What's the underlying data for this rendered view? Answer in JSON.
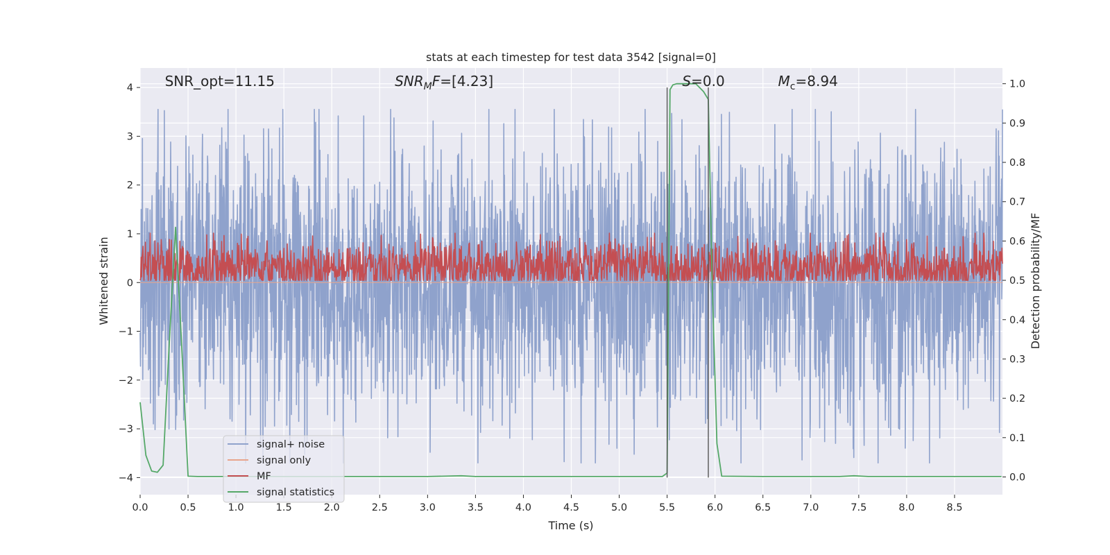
{
  "chart_data": {
    "type": "line",
    "title": "stats at each timestep for test data 3542 [signal=0]",
    "xlabel": "Time (s)",
    "ylabel": "Whitened strain",
    "ylabel_right": "Detection probability/MF",
    "xlim": [
      0.0,
      9.0
    ],
    "ylim": [
      -4.35,
      4.4
    ],
    "ylim_right": [
      -0.045,
      1.04
    ],
    "x_ticks": [
      "0.0",
      "0.5",
      "1.0",
      "1.5",
      "2.0",
      "2.5",
      "3.0",
      "3.5",
      "4.0",
      "4.5",
      "5.0",
      "5.5",
      "6.0",
      "6.5",
      "7.0",
      "7.5",
      "8.0",
      "8.5"
    ],
    "y_ticks": [
      "−4",
      "−3",
      "−2",
      "−1",
      "0",
      "1",
      "2",
      "3",
      "4"
    ],
    "y_ticks_right": [
      "0.0",
      "0.1",
      "0.2",
      "0.3",
      "0.4",
      "0.5",
      "0.6",
      "0.7",
      "0.8",
      "0.9",
      "1.0"
    ],
    "grid": true,
    "legend_position": "lower-left",
    "annotations": [
      {
        "name": "snr-opt",
        "parts": [
          {
            "t": "SNR_opt=11.15",
            "italic": false
          }
        ],
        "x": 0.2
      },
      {
        "name": "snr-mf",
        "parts": [
          {
            "t": "SNR",
            "italic": true
          },
          {
            "t": "M",
            "italic": true,
            "sub": true
          },
          {
            "t": "F",
            "italic": true
          },
          {
            "t": "=[4.23]",
            "italic": false
          }
        ],
        "x": 2.6
      },
      {
        "name": "s-value",
        "parts": [
          {
            "t": "S",
            "italic": true
          },
          {
            "t": "=0.0",
            "italic": false
          }
        ],
        "x": 5.6
      },
      {
        "name": "chirp-mass",
        "parts": [
          {
            "t": "M",
            "italic": true
          },
          {
            "t": "c",
            "italic": false,
            "sub": true
          },
          {
            "t": "=8.94",
            "italic": false
          }
        ],
        "x": 6.6
      }
    ],
    "vertical_markers": [
      5.5,
      5.93
    ],
    "series": [
      {
        "name": "signal+ noise",
        "color": "#8fa2cc",
        "axis": "left",
        "kind": "noise",
        "amplitude": 1.4
      },
      {
        "name": "signal only",
        "color": "#e8a58c",
        "axis": "left",
        "kind": "flat"
      },
      {
        "name": "MF",
        "color": "#c44e52",
        "axis": "right",
        "kind": "mf",
        "baseline": 0.53
      },
      {
        "name": "signal statistics",
        "color": "#55a868",
        "axis": "right",
        "kind": "points",
        "x": [
          0.0,
          0.06,
          0.12,
          0.18,
          0.24,
          0.3,
          0.37,
          0.43,
          0.5,
          0.6,
          1.0,
          2.0,
          3.0,
          3.35,
          3.5,
          4.0,
          5.0,
          5.45,
          5.5,
          5.53,
          5.56,
          5.6,
          5.7,
          5.8,
          5.88,
          5.93,
          5.97,
          6.02,
          6.07,
          6.5,
          7.0,
          7.3,
          7.45,
          7.6,
          8.0,
          8.5,
          8.99
        ],
        "y": [
          0.19,
          0.055,
          0.015,
          0.012,
          0.03,
          0.32,
          0.635,
          0.35,
          0.002,
          0.001,
          0.001,
          0.001,
          0.001,
          0.003,
          0.001,
          0.001,
          0.001,
          0.001,
          0.01,
          0.985,
          0.997,
          1.0,
          1.0,
          1.0,
          0.98,
          0.96,
          0.5,
          0.085,
          0.002,
          0.001,
          0.001,
          0.001,
          0.003,
          0.001,
          0.001,
          0.001,
          0.001
        ]
      }
    ]
  }
}
